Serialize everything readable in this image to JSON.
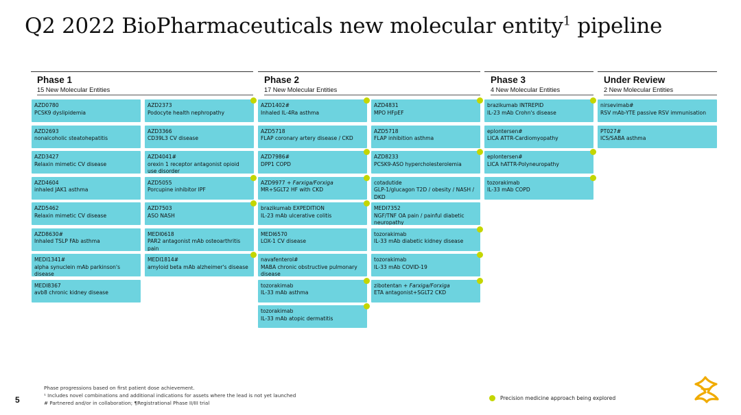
{
  "title": "Q2 2022 BioPharmaceuticals new molecular entity",
  "title_sup": "1",
  "title_tail": " pipeline",
  "colors": {
    "card": "#6dd3df",
    "dot": "#c4d600"
  },
  "phases": [
    {
      "name": "Phase 1",
      "subtitle": "15 New Molecular Entities"
    },
    {
      "name": "Phase 2",
      "subtitle": "17 New Molecular Entities"
    },
    {
      "name": "Phase 3",
      "subtitle": "4 New Molecular Entities"
    },
    {
      "name": "Under Review",
      "subtitle": "2 New Molecular Entities"
    }
  ],
  "columns": [
    [
      {
        "l1": "AZD0780",
        "l2": "PCSK9 dyslipidemia",
        "dot": false
      },
      {
        "l1": "AZD2693",
        "l2": "nonalcoholic steatohepatitis",
        "dot": false
      },
      {
        "l1": "AZD3427",
        "l2": "Relaxin mimetic CV disease",
        "dot": false
      },
      {
        "l1": "AZD4604",
        "l2": "inhaled JAK1 asthma",
        "dot": false
      },
      {
        "l1": "AZD5462",
        "l2": "Relaxin mimetic CV disease",
        "dot": false
      },
      {
        "l1": "AZD8630#",
        "l2": "Inhaled TSLP FAb asthma",
        "dot": false
      },
      {
        "l1": "MEDI1341#",
        "l2": "alpha synuclein mAb parkinson's disease",
        "dot": false
      },
      {
        "l1": "MEDI8367",
        "l2": "avb8 chronic kidney disease",
        "dot": false
      }
    ],
    [
      {
        "l1": "AZD2373",
        "l2": "Podocyte health nephropathy",
        "dot": true
      },
      {
        "l1": "AZD3366",
        "l2": "CD39L3 CV disease",
        "dot": false
      },
      {
        "l1": "AZD4041#",
        "l2": "orexin 1 receptor antagonist opioid use disorder",
        "dot": false
      },
      {
        "l1": "AZD5055",
        "l2": "Porcupine inhibitor IPF",
        "dot": true
      },
      {
        "l1": "AZD7503",
        "l2": "ASO NASH",
        "dot": true
      },
      {
        "l1": "MEDI0618",
        "l2": "PAR2 antagonist mAb osteoarthritis pain",
        "dot": false
      },
      {
        "l1": "MEDI1814#",
        "l2": "amyloid beta mAb alzheimer's disease",
        "dot": true
      }
    ],
    [
      {
        "l1": "AZD1402#",
        "l2": "Inhaled IL-4Ra asthma",
        "dot": true
      },
      {
        "l1": "AZD5718",
        "l2": "FLAP coronary artery disease / CKD",
        "dot": false
      },
      {
        "l1": "AZD7986#",
        "l2": "DPP1 COPD",
        "dot": true
      },
      {
        "l1": "AZD9977 + ",
        "l1_italic": "Farxiga/Forxiga",
        "l2": "MR+SGLT2 HF with CKD",
        "dot": true
      },
      {
        "l1": "brazikumab EXPEDITION",
        "l2": "IL-23 mAb ulcerative colitis",
        "dot": true
      },
      {
        "l1": "MEDI6570",
        "l2": "LOX-1 CV disease",
        "dot": false
      },
      {
        "l1": "navafenterol#",
        "l2": "MABA chronic obstructive pulmonary disease",
        "dot": false
      },
      {
        "l1": "tozorakimab",
        "l2": "IL-33 mAb asthma",
        "dot": true
      },
      {
        "l1": "tozorakimab",
        "l2": "IL-33 mAb atopic dermatitis",
        "dot": true
      }
    ],
    [
      {
        "l1": "AZD4831",
        "l2": "MPO HFpEF",
        "dot": true
      },
      {
        "l1": "AZD5718",
        "l2": "FLAP inhibition asthma",
        "dot": false
      },
      {
        "l1": "AZD8233",
        "l2": "PCSK9-ASO hypercholesterolemia",
        "dot": true
      },
      {
        "l1": "cotadutide",
        "l2": "GLP-1/glucagon T2D / obesity / NASH / DKD",
        "dot": false
      },
      {
        "l1": "MEDI7352",
        "l2": "NGF/TNF OA pain / painful diabetic neuropathy",
        "dot": false
      },
      {
        "l1": "tozorakimab",
        "l2": "IL-33 mAb diabetic kidney disease",
        "dot": true
      },
      {
        "l1": "tozorakimab",
        "l2": "IL-33 mAb COVID-19",
        "dot": true
      },
      {
        "l1": "zibotentan + ",
        "l1_italic": "Farxiga/Forxiga",
        "l2": "ETA antagonist+SGLT2 CKD",
        "dot": true
      }
    ],
    [
      {
        "l1": "brazikumab INTREPID",
        "l2": "IL-23 mAb Crohn's disease",
        "dot": true
      },
      {
        "l1": "eplontersen#",
        "l2": "LICA ATTR-Cardiomyopathy",
        "dot": false
      },
      {
        "l1": "eplontersen#",
        "l2": "LICA hATTR-Polyneuropathy",
        "dot": true
      },
      {
        "l1": "tozorakimab",
        "l2": "IL-33 mAb COPD",
        "dot": true
      }
    ],
    [
      {
        "l1": "nirsevimab#",
        "l2": "RSV mAb-YTE passive RSV immunisation",
        "dot": false
      },
      {
        "l1": "PT027#",
        "l2": "ICS/SABA asthma",
        "dot": false
      }
    ]
  ],
  "page_number": "5",
  "footnotes": [
    "Phase progressions based on first patient dose achievement.",
    "¹ Includes novel combinations and additional indications for assets where the lead is not yet launched",
    "# Partnered and/or in collaboration; ¶Registrational Phase II/III trial"
  ],
  "legend": "Precision medicine approach being explored",
  "logo": "astrazeneca-logo"
}
